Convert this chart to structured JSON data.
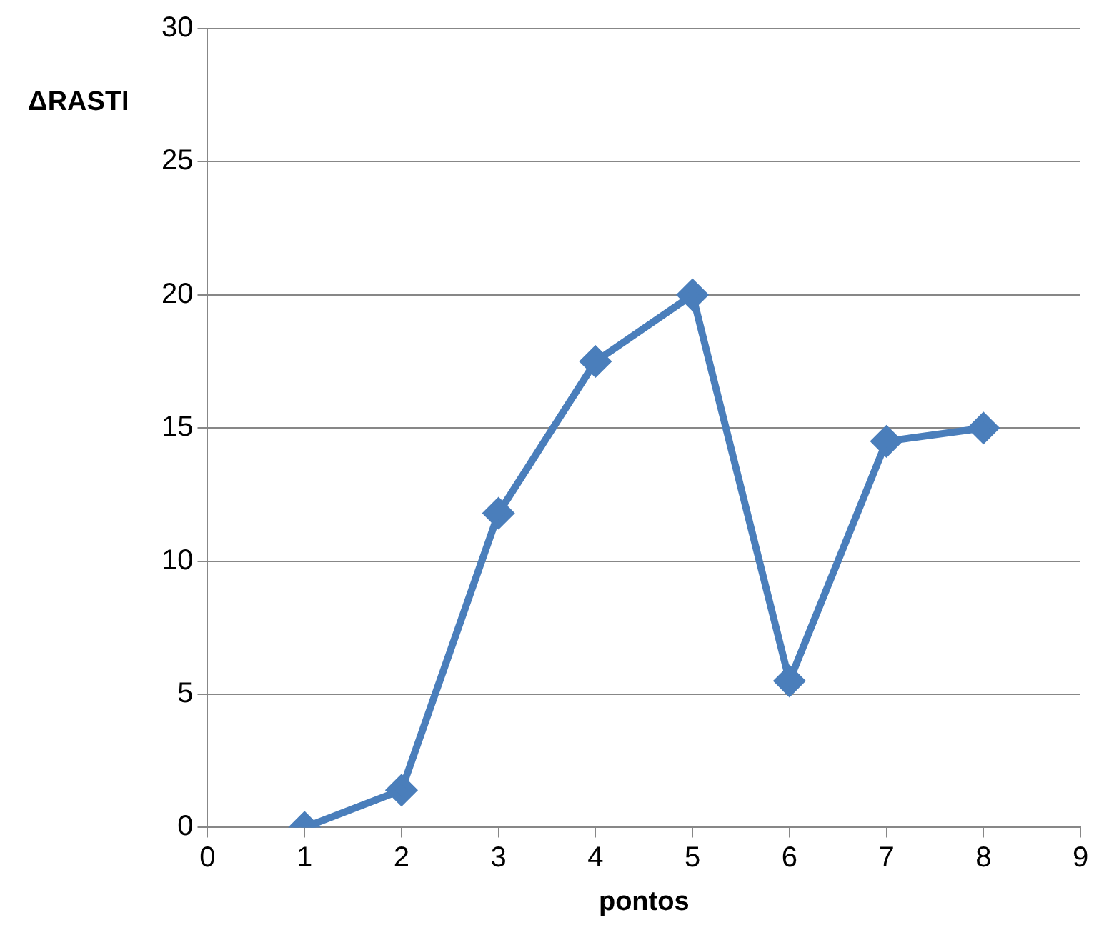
{
  "chart_data": {
    "type": "line",
    "xlabel": "pontos",
    "ylabel": "ΔRASTI",
    "x": [
      1,
      2,
      3,
      4,
      5,
      6,
      7,
      8
    ],
    "series": [
      {
        "color": "#4a7ebb",
        "values": [
          0,
          1.4,
          11.8,
          17.5,
          20,
          5.5,
          14.5,
          15
        ]
      }
    ],
    "xlim": [
      0,
      9
    ],
    "xticks": [
      0,
      1,
      2,
      3,
      4,
      5,
      6,
      7,
      8,
      9
    ],
    "ylim": [
      0,
      30
    ],
    "yticks": [
      0,
      5,
      10,
      15,
      20,
      25,
      30
    ],
    "grid": "y",
    "legend": false,
    "marker": "diamond",
    "line_style": "solid"
  }
}
